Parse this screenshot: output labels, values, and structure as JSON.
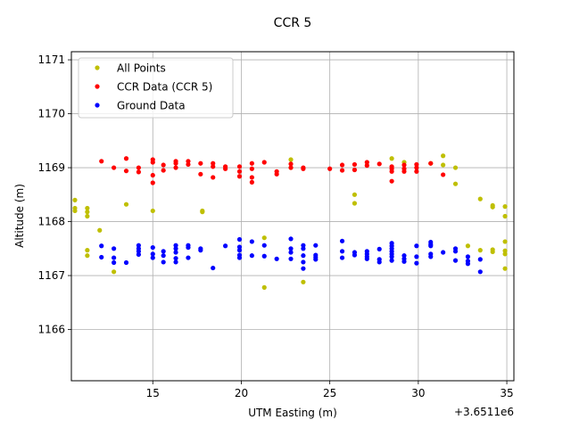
{
  "chart_data": {
    "type": "scatter",
    "title": "CCR 5",
    "xlabel": "UTM Easting (m)",
    "ylabel": "Altitude (m)",
    "x_offset_label": "+3.6511e6",
    "xlim": [
      10.4,
      35.4
    ],
    "ylim": [
      1165.05,
      1171.15
    ],
    "x_ticks": [
      15,
      20,
      25,
      30,
      35
    ],
    "y_ticks": [
      1166,
      1167,
      1168,
      1169,
      1170,
      1171
    ],
    "grid": true,
    "legend_position": "top-left",
    "series": [
      {
        "name": "All Points",
        "color": "#bfbf00",
        "points": [
          [
            10.6,
            1168.4
          ],
          [
            10.6,
            1168.25
          ],
          [
            10.6,
            1168.2
          ],
          [
            11.3,
            1168.25
          ],
          [
            11.3,
            1168.18
          ],
          [
            11.3,
            1168.1
          ],
          [
            11.3,
            1167.47
          ],
          [
            11.3,
            1167.37
          ],
          [
            12.0,
            1167.84
          ],
          [
            12.8,
            1167.07
          ],
          [
            13.5,
            1168.32
          ],
          [
            15.0,
            1168.2
          ],
          [
            17.8,
            1168.2
          ],
          [
            17.8,
            1168.18
          ],
          [
            21.3,
            1167.7
          ],
          [
            21.3,
            1166.78
          ],
          [
            22.8,
            1169.15
          ],
          [
            22.8,
            1169.0
          ],
          [
            23.5,
            1166.88
          ],
          [
            26.4,
            1168.5
          ],
          [
            26.4,
            1168.34
          ],
          [
            28.5,
            1169.17
          ],
          [
            29.2,
            1169.1
          ],
          [
            30.7,
            1169.08
          ],
          [
            31.4,
            1169.22
          ],
          [
            31.4,
            1169.05
          ],
          [
            32.1,
            1169.0
          ],
          [
            32.1,
            1168.7
          ],
          [
            32.8,
            1167.55
          ],
          [
            33.5,
            1168.42
          ],
          [
            34.2,
            1168.3
          ],
          [
            34.2,
            1168.27
          ],
          [
            34.2,
            1167.48
          ],
          [
            34.2,
            1167.44
          ],
          [
            34.9,
            1168.28
          ],
          [
            34.9,
            1168.1
          ],
          [
            34.9,
            1167.63
          ],
          [
            34.9,
            1167.46
          ],
          [
            34.9,
            1167.4
          ],
          [
            34.9,
            1167.13
          ],
          [
            33.5,
            1167.47
          ]
        ]
      },
      {
        "name": "CCR Data (CCR 5)",
        "color": "#ff0000",
        "points": [
          [
            12.1,
            1169.12
          ],
          [
            12.8,
            1169.0
          ],
          [
            13.5,
            1169.17
          ],
          [
            13.5,
            1168.94
          ],
          [
            14.2,
            1169.0
          ],
          [
            14.2,
            1168.92
          ],
          [
            15.0,
            1169.15
          ],
          [
            15.0,
            1169.1
          ],
          [
            15.0,
            1168.86
          ],
          [
            15.0,
            1168.72
          ],
          [
            15.6,
            1169.05
          ],
          [
            15.6,
            1168.95
          ],
          [
            16.3,
            1169.12
          ],
          [
            16.3,
            1169.08
          ],
          [
            16.3,
            1169.0
          ],
          [
            17.0,
            1169.12
          ],
          [
            17.0,
            1169.06
          ],
          [
            17.7,
            1169.08
          ],
          [
            17.7,
            1168.88
          ],
          [
            18.4,
            1169.08
          ],
          [
            18.4,
            1169.02
          ],
          [
            18.4,
            1168.82
          ],
          [
            19.1,
            1169.02
          ],
          [
            19.1,
            1168.98
          ],
          [
            19.9,
            1169.02
          ],
          [
            19.9,
            1168.93
          ],
          [
            19.9,
            1168.84
          ],
          [
            20.6,
            1169.08
          ],
          [
            20.6,
            1168.98
          ],
          [
            20.6,
            1168.82
          ],
          [
            20.6,
            1168.73
          ],
          [
            21.3,
            1169.1
          ],
          [
            22.0,
            1168.93
          ],
          [
            22.0,
            1168.88
          ],
          [
            22.8,
            1169.07
          ],
          [
            22.8,
            1169.0
          ],
          [
            23.5,
            1169.0
          ],
          [
            23.5,
            1168.98
          ],
          [
            25.0,
            1168.98
          ],
          [
            25.7,
            1169.05
          ],
          [
            25.7,
            1168.95
          ],
          [
            26.4,
            1169.06
          ],
          [
            26.4,
            1168.96
          ],
          [
            27.1,
            1169.1
          ],
          [
            27.1,
            1169.04
          ],
          [
            27.8,
            1169.07
          ],
          [
            28.5,
            1169.02
          ],
          [
            28.5,
            1168.98
          ],
          [
            28.5,
            1168.93
          ],
          [
            28.5,
            1168.75
          ],
          [
            29.2,
            1169.05
          ],
          [
            29.2,
            1168.98
          ],
          [
            29.2,
            1168.93
          ],
          [
            29.9,
            1169.06
          ],
          [
            29.9,
            1169.0
          ],
          [
            29.9,
            1168.93
          ],
          [
            30.7,
            1169.08
          ],
          [
            31.4,
            1168.87
          ]
        ]
      },
      {
        "name": "Ground Data",
        "color": "#0000ff",
        "points": [
          [
            12.1,
            1167.55
          ],
          [
            12.1,
            1167.34
          ],
          [
            12.8,
            1167.5
          ],
          [
            12.8,
            1167.33
          ],
          [
            12.8,
            1167.24
          ],
          [
            13.5,
            1167.24
          ],
          [
            14.2,
            1167.56
          ],
          [
            14.2,
            1167.5
          ],
          [
            14.2,
            1167.45
          ],
          [
            14.2,
            1167.39
          ],
          [
            15.0,
            1167.52
          ],
          [
            15.0,
            1167.4
          ],
          [
            15.0,
            1167.33
          ],
          [
            15.6,
            1167.45
          ],
          [
            15.6,
            1167.37
          ],
          [
            15.6,
            1167.25
          ],
          [
            16.3,
            1167.56
          ],
          [
            16.3,
            1167.5
          ],
          [
            16.3,
            1167.43
          ],
          [
            16.3,
            1167.32
          ],
          [
            16.3,
            1167.25
          ],
          [
            17.0,
            1167.56
          ],
          [
            17.0,
            1167.52
          ],
          [
            17.0,
            1167.33
          ],
          [
            17.7,
            1167.5
          ],
          [
            17.7,
            1167.47
          ],
          [
            18.4,
            1167.14
          ],
          [
            19.1,
            1167.55
          ],
          [
            19.9,
            1167.67
          ],
          [
            19.9,
            1167.53
          ],
          [
            19.9,
            1167.47
          ],
          [
            19.9,
            1167.38
          ],
          [
            19.9,
            1167.33
          ],
          [
            20.6,
            1167.63
          ],
          [
            20.6,
            1167.37
          ],
          [
            21.3,
            1167.56
          ],
          [
            21.3,
            1167.36
          ],
          [
            22.0,
            1167.31
          ],
          [
            22.8,
            1167.68
          ],
          [
            22.8,
            1167.5
          ],
          [
            22.8,
            1167.43
          ],
          [
            22.8,
            1167.31
          ],
          [
            23.5,
            1167.56
          ],
          [
            23.5,
            1167.5
          ],
          [
            23.5,
            1167.37
          ],
          [
            23.5,
            1167.25
          ],
          [
            23.5,
            1167.13
          ],
          [
            24.2,
            1167.56
          ],
          [
            24.2,
            1167.38
          ],
          [
            24.2,
            1167.34
          ],
          [
            24.2,
            1167.3
          ],
          [
            25.7,
            1167.64
          ],
          [
            25.7,
            1167.45
          ],
          [
            25.7,
            1167.33
          ],
          [
            26.4,
            1167.43
          ],
          [
            26.4,
            1167.38
          ],
          [
            27.1,
            1167.45
          ],
          [
            27.1,
            1167.4
          ],
          [
            27.1,
            1167.35
          ],
          [
            27.1,
            1167.31
          ],
          [
            27.8,
            1167.49
          ],
          [
            27.8,
            1167.3
          ],
          [
            27.8,
            1167.25
          ],
          [
            28.5,
            1167.6
          ],
          [
            28.5,
            1167.55
          ],
          [
            28.5,
            1167.5
          ],
          [
            28.5,
            1167.45
          ],
          [
            28.5,
            1167.4
          ],
          [
            28.5,
            1167.35
          ],
          [
            28.5,
            1167.28
          ],
          [
            29.2,
            1167.37
          ],
          [
            29.2,
            1167.31
          ],
          [
            29.2,
            1167.26
          ],
          [
            29.9,
            1167.55
          ],
          [
            29.9,
            1167.35
          ],
          [
            29.9,
            1167.23
          ],
          [
            30.7,
            1167.62
          ],
          [
            30.7,
            1167.58
          ],
          [
            30.7,
            1167.55
          ],
          [
            30.7,
            1167.4
          ],
          [
            30.7,
            1167.35
          ],
          [
            31.4,
            1167.43
          ],
          [
            32.1,
            1167.5
          ],
          [
            32.1,
            1167.45
          ],
          [
            32.1,
            1167.28
          ],
          [
            32.8,
            1167.35
          ],
          [
            32.8,
            1167.27
          ],
          [
            32.8,
            1167.22
          ],
          [
            33.5,
            1167.3
          ],
          [
            33.5,
            1167.07
          ]
        ]
      }
    ]
  }
}
